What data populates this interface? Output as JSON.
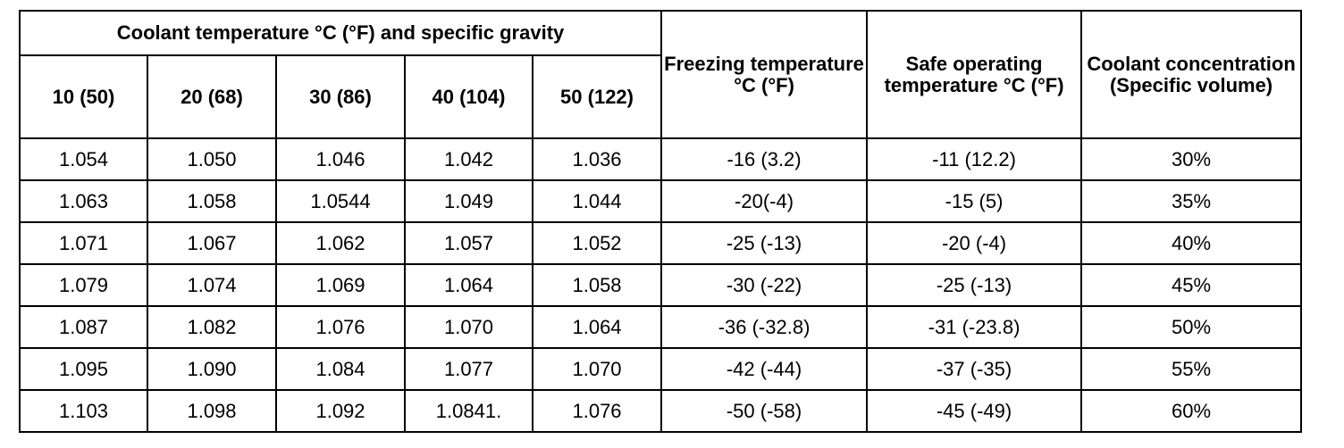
{
  "table": {
    "group_header": "Coolant temperature °C (°F) and specific gravity",
    "sub_headers": [
      "10 (50)",
      "20 (68)",
      "30 (86)",
      "40 (104)",
      "50 (122)"
    ],
    "freezing_header": "Freezing temperature °C (°F)",
    "safe_header": "Safe operating temperature °C (°F)",
    "concentration_header": "Coolant concentration (Specific volume)",
    "rows": [
      {
        "sg": [
          "1.054",
          "1.050",
          "1.046",
          "1.042",
          "1.036"
        ],
        "freezing": "-16 (3.2)",
        "safe": "-11 (12.2)",
        "concentration": "30%"
      },
      {
        "sg": [
          "1.063",
          "1.058",
          "1.0544",
          "1.049",
          "1.044"
        ],
        "freezing": "-20(-4)",
        "safe": "-15 (5)",
        "concentration": "35%"
      },
      {
        "sg": [
          "1.071",
          "1.067",
          "1.062",
          "1.057",
          "1.052"
        ],
        "freezing": "-25 (-13)",
        "safe": "-20 (-4)",
        "concentration": "40%"
      },
      {
        "sg": [
          "1.079",
          "1.074",
          "1.069",
          "1.064",
          "1.058"
        ],
        "freezing": "-30 (-22)",
        "safe": "-25 (-13)",
        "concentration": "45%"
      },
      {
        "sg": [
          "1.087",
          "1.082",
          "1.076",
          "1.070",
          "1.064"
        ],
        "freezing": "-36 (-32.8)",
        "safe": "-31 (-23.8)",
        "concentration": "50%"
      },
      {
        "sg": [
          "1.095",
          "1.090",
          "1.084",
          "1.077",
          "1.070"
        ],
        "freezing": "-42 (-44)",
        "safe": "-37 (-35)",
        "concentration": "55%"
      },
      {
        "sg": [
          "1.103",
          "1.098",
          "1.092",
          "1.0841.",
          "1.076"
        ],
        "freezing": "-50 (-58)",
        "safe": "-45 (-49)",
        "concentration": "60%"
      }
    ]
  }
}
